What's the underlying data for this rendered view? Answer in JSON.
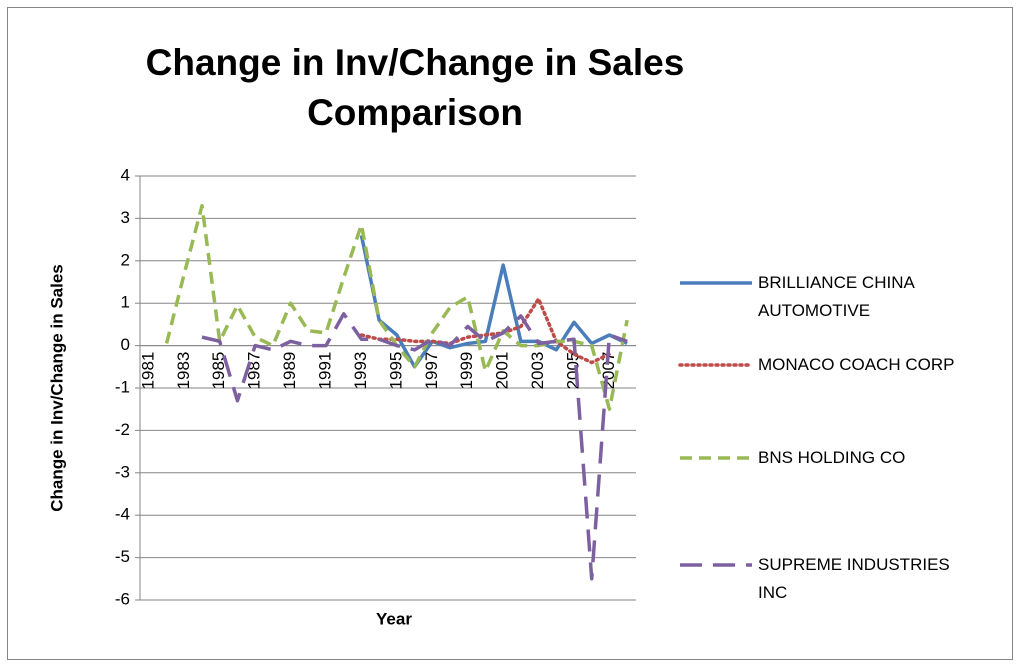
{
  "chart_data": {
    "type": "line",
    "title": "Change in Inv/Change in Sales Comparison",
    "x_label": "Year",
    "y_label": "Change in Inv/Change in Sales",
    "categories": [
      "1981",
      null,
      "1983",
      null,
      "1985",
      null,
      "1987",
      null,
      "1989",
      null,
      "1991",
      null,
      "1993",
      null,
      "1995",
      null,
      "1997",
      null,
      "1999",
      null,
      "2001",
      null,
      "2003",
      null,
      "2005",
      null,
      "2007",
      null
    ],
    "ylim": [
      -6,
      4
    ],
    "yticks": [
      -6,
      -5,
      -4,
      -3,
      -2,
      -1,
      0,
      1,
      2,
      3,
      4
    ],
    "grid": true,
    "legend": "right",
    "series": [
      {
        "name": "BRILLIANCE CHINA AUTOMOTIVE",
        "color": "#4a7ebb",
        "dash": "solid",
        "values": [
          null,
          null,
          null,
          null,
          null,
          null,
          null,
          null,
          null,
          null,
          null,
          null,
          2.6,
          0.6,
          0.25,
          -0.5,
          0.1,
          -0.05,
          0.05,
          0.1,
          1.9,
          0.1,
          0.1,
          -0.1,
          0.55,
          0.05,
          0.25,
          0.05
        ]
      },
      {
        "name": "MONACO COACH CORP",
        "color": "#be4b48",
        "dash": "dotted",
        "values": [
          null,
          null,
          null,
          null,
          null,
          null,
          null,
          null,
          null,
          null,
          null,
          null,
          0.25,
          0.15,
          0.15,
          0.1,
          0.1,
          0.05,
          0.2,
          0.25,
          0.3,
          0.45,
          1.1,
          0.1,
          -0.2,
          -0.4,
          -0.2,
          null
        ]
      },
      {
        "name": "BNS HOLDING CO",
        "color": "#98b954",
        "dash": "dashed",
        "values": [
          null,
          0.05,
          1.7,
          3.3,
          0.1,
          0.95,
          0.2,
          0.0,
          1.0,
          0.35,
          0.3,
          1.6,
          2.85,
          0.6,
          0.0,
          -0.5,
          0.3,
          0.9,
          1.15,
          -0.6,
          0.35,
          0.0,
          0.0,
          0.1,
          0.1,
          0.0,
          -1.5,
          0.6
        ]
      },
      {
        "name": "SUPREME INDUSTRIES INC",
        "color": "#7d60a0",
        "dash": "longdash",
        "values": [
          null,
          null,
          null,
          0.2,
          0.1,
          -1.3,
          0.0,
          -0.1,
          0.1,
          0.0,
          0.0,
          0.75,
          0.15,
          0.15,
          0.0,
          -0.1,
          0.15,
          0.0,
          0.45,
          0.1,
          0.3,
          0.7,
          0.05,
          0.1,
          0.15,
          -5.5,
          0.25,
          0.1
        ]
      }
    ]
  }
}
